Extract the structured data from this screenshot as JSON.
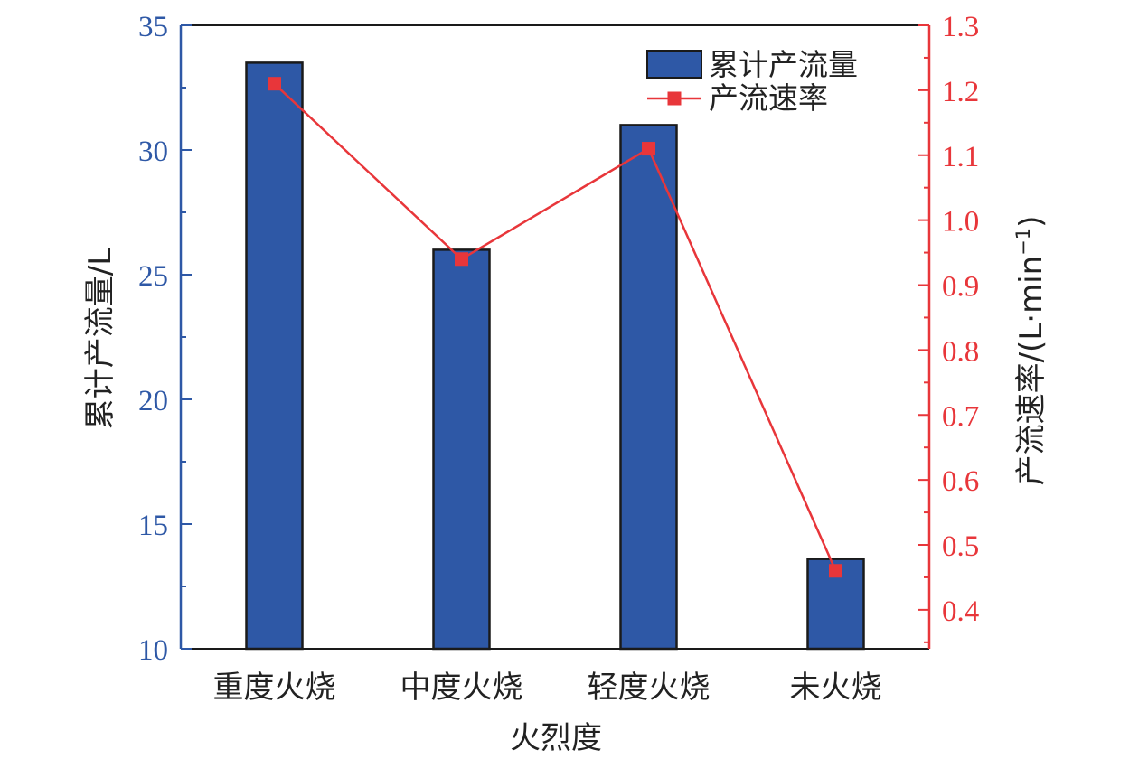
{
  "colors": {
    "bar_fill": "#2e58a6",
    "bar_stroke": "#1a1a1a",
    "line": "#e8363a",
    "left_axis": "#2e58a6",
    "right_axis": "#e8363a",
    "frame": "#1a1a1a"
  },
  "chart_data": {
    "type": "bar",
    "categories": [
      "重度火烧",
      "中度火烧",
      "轻度火烧",
      "未火烧"
    ],
    "series": [
      {
        "name": "累计产流量",
        "type": "bar",
        "axis": "left",
        "values": [
          33.5,
          26.0,
          31.0,
          13.6
        ]
      },
      {
        "name": "产流速率",
        "type": "line",
        "axis": "right",
        "marker": "square",
        "values": [
          1.21,
          0.94,
          1.11,
          0.46
        ]
      }
    ],
    "xlabel": "火烈度",
    "ylabel": "累计产流量/L",
    "ylabel_right": "产流速率/(L·min",
    "ylabel_right_sup": "−1",
    "ylabel_right_close": ")",
    "ylim": [
      10,
      35
    ],
    "ylim_right": [
      0.34,
      1.3
    ],
    "yticks": [
      10,
      15,
      20,
      25,
      30,
      35
    ],
    "yticks_right": [
      0.4,
      0.5,
      0.6,
      0.7,
      0.8,
      0.9,
      1.0,
      1.1,
      1.2,
      1.3
    ],
    "legend_position": "top-right",
    "grid": false
  }
}
